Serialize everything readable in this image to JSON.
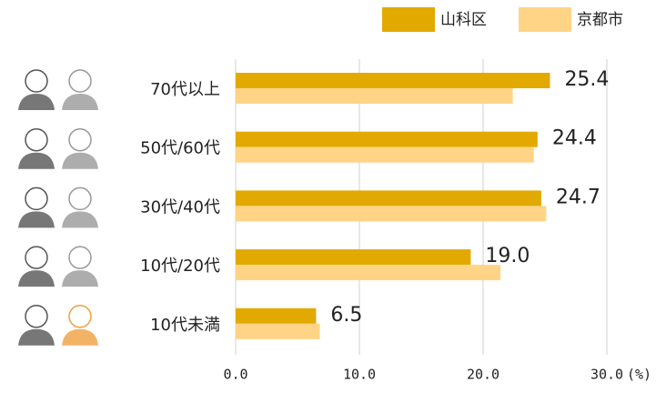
{
  "chart_data": {
    "type": "hbar",
    "categories": [
      "70代以上",
      "50代/60代",
      "30代/40代",
      "10代/20代",
      "10代未満"
    ],
    "series": [
      {
        "name": "山科区",
        "color": "#e2aa00",
        "values": [
          25.4,
          24.4,
          24.7,
          19.0,
          6.5
        ],
        "value_labels": [
          "25.4",
          "24.4",
          "24.7",
          "19.0",
          "6.5"
        ]
      },
      {
        "name": "京都市",
        "color": "#ffd486",
        "values": [
          22.4,
          24.1,
          25.1,
          21.4,
          6.8
        ]
      }
    ],
    "xlim": [
      0,
      30
    ],
    "xticks": [
      {
        "value": 0,
        "label": "0.0"
      },
      {
        "value": 10,
        "label": "10.0"
      },
      {
        "value": 20,
        "label": "20.0"
      },
      {
        "value": 30,
        "label": "30.0"
      }
    ],
    "x_unit": "(%)",
    "grid": true
  }
}
